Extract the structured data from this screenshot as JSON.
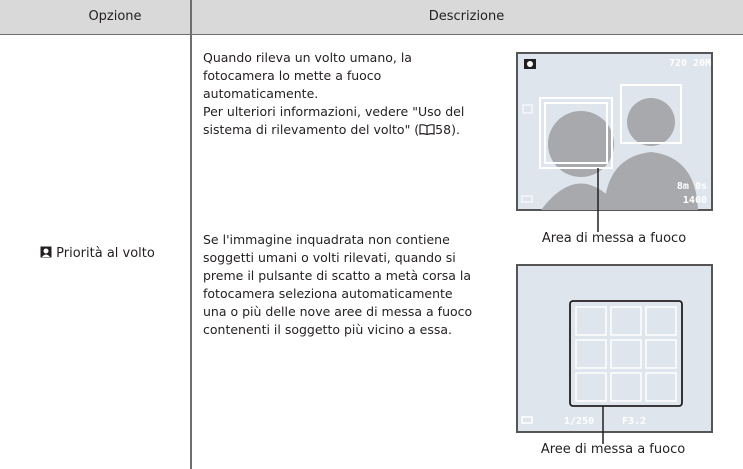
{
  "table": {
    "headers": [
      "Opzione",
      "Descrizione"
    ],
    "rows": [
      {
        "option": "Priorità al volto",
        "description": [
          [
            "Quando rileva un volto umano, la",
            "fotocamera lo mette a fuoco",
            "automaticamente.",
            "Per ulteriori informazioni, vedere \"Uso del",
            "sistema di rilevamento del volto\" (",
            "58)."
          ],
          [
            "Se l'immagine inquadrata non contiene",
            "soggetti umani o volti rilevati, quando si",
            "preme il pulsante di scatto a metà corsa la",
            "fotocamera seleziona automaticamente",
            "una o più delle nove aree di messa a fuoco",
            "contenenti il soggetto più vicino a essa."
          ]
        ]
      }
    ]
  },
  "figures": [
    {
      "caption": "Area di messa a fuoco",
      "screen": [
        "720",
        "20M",
        "8m 0s",
        "1400"
      ]
    },
    {
      "caption": "Aree di messa a fuoco",
      "screen": [
        "1/250",
        "F3.2"
      ]
    }
  ]
}
